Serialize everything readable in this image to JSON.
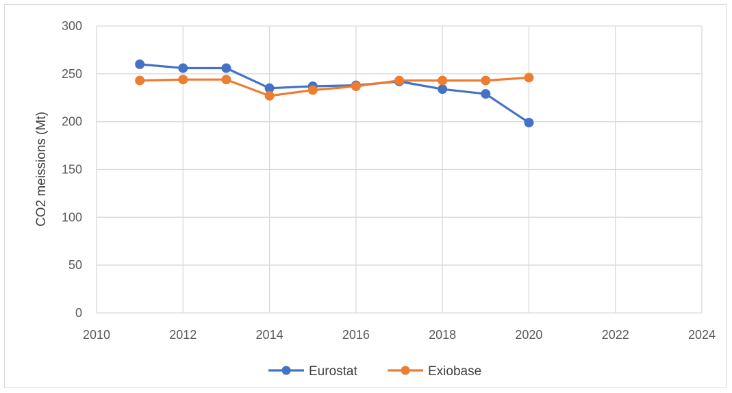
{
  "chart_data": {
    "type": "scatter",
    "title": "",
    "xlabel": "",
    "ylabel": "CO2 meissions (Mt)",
    "xlim": [
      2010,
      2024
    ],
    "ylim": [
      0,
      300
    ],
    "xticks": [
      2010,
      2012,
      2014,
      2016,
      2018,
      2020,
      2022,
      2024
    ],
    "yticks": [
      0,
      50,
      100,
      150,
      200,
      250,
      300
    ],
    "grid": true,
    "legend": "bottom",
    "series": [
      {
        "name": "Eurostat",
        "color": "#4472C4",
        "x": [
          2011,
          2012,
          2013,
          2014,
          2015,
          2016,
          2017,
          2018,
          2019,
          2020
        ],
        "y": [
          260,
          256,
          256,
          235,
          237,
          238,
          242,
          234,
          229,
          199
        ]
      },
      {
        "name": "Exiobase",
        "color": "#ED7D31",
        "x": [
          2011,
          2012,
          2013,
          2014,
          2015,
          2016,
          2017,
          2018,
          2019,
          2020
        ],
        "y": [
          243,
          244,
          244,
          227,
          233,
          237,
          243,
          243,
          243,
          246
        ]
      }
    ]
  },
  "style": {
    "grid_color": "#d9d9d9",
    "border_color": "#d9d9d9"
  }
}
